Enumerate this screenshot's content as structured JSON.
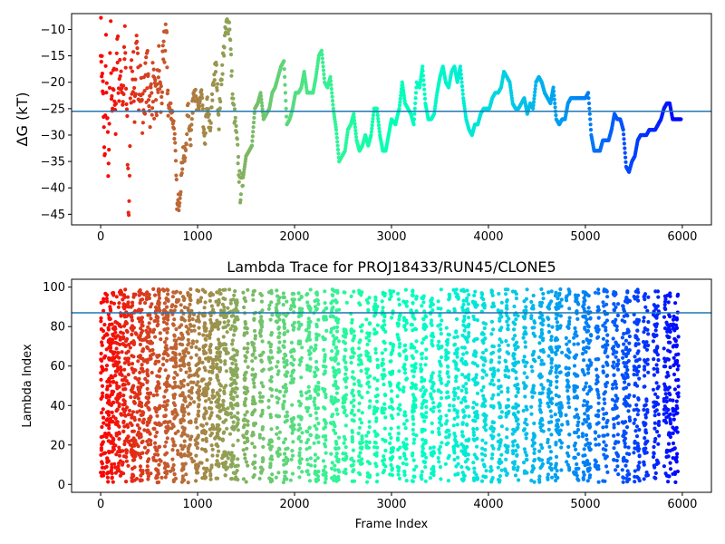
{
  "chart_data": [
    {
      "type": "scatter",
      "title": "",
      "xlabel": "",
      "ylabel": "ΔG (kT)",
      "xlim": [
        -300,
        6300
      ],
      "ylim": [
        -47,
        -7
      ],
      "xticks": [
        0,
        1000,
        2000,
        3000,
        4000,
        5000,
        6000
      ],
      "yticks": [
        -45,
        -40,
        -35,
        -30,
        -25,
        -20,
        -15,
        -10
      ],
      "colormap": "rainbow (red at frame 0 to violet at frame 6000)",
      "hline": -25.5,
      "hline_color": "#1f77b4",
      "grid": false,
      "trace": [
        [
          0,
          -10
        ],
        [
          10,
          -16
        ],
        [
          20,
          -20
        ],
        [
          30,
          -27
        ],
        [
          40,
          -37
        ],
        [
          55,
          -13
        ],
        [
          70,
          -31
        ],
        [
          85,
          -37
        ],
        [
          100,
          -8
        ],
        [
          115,
          -26
        ],
        [
          130,
          -17
        ],
        [
          150,
          -29
        ],
        [
          170,
          -11
        ],
        [
          190,
          -22
        ],
        [
          210,
          -17
        ],
        [
          230,
          -24
        ],
        [
          250,
          -13
        ],
        [
          270,
          -27
        ],
        [
          290,
          -46
        ],
        [
          310,
          -21
        ],
        [
          330,
          -16
        ],
        [
          350,
          -24
        ],
        [
          370,
          -15
        ],
        [
          390,
          -21
        ],
        [
          410,
          -18
        ],
        [
          430,
          -27
        ],
        [
          450,
          -22
        ],
        [
          480,
          -18
        ],
        [
          510,
          -24
        ],
        [
          540,
          -20
        ],
        [
          570,
          -26
        ],
        [
          600,
          -17
        ],
        [
          620,
          -24
        ],
        [
          650,
          -16
        ],
        [
          670,
          -9
        ],
        [
          700,
          -25
        ],
        [
          730,
          -25
        ],
        [
          760,
          -29
        ],
        [
          790,
          -44
        ],
        [
          810,
          -42
        ],
        [
          830,
          -38
        ],
        [
          850,
          -33
        ],
        [
          870,
          -35
        ],
        [
          900,
          -25
        ],
        [
          930,
          -31
        ],
        [
          960,
          -20
        ],
        [
          990,
          -25
        ],
        [
          1010,
          -25
        ],
        [
          1040,
          -22
        ],
        [
          1070,
          -32
        ],
        [
          1100,
          -24
        ],
        [
          1130,
          -30
        ],
        [
          1160,
          -20
        ],
        [
          1190,
          -17
        ],
        [
          1220,
          -27
        ],
        [
          1250,
          -18
        ],
        [
          1280,
          -12
        ],
        [
          1300,
          -9
        ],
        [
          1330,
          -9
        ],
        [
          1360,
          -23
        ],
        [
          1390,
          -28
        ],
        [
          1420,
          -35
        ],
        [
          1440,
          -41
        ],
        [
          1470,
          -38
        ],
        [
          1500,
          -34
        ],
        [
          1530,
          -33
        ],
        [
          1560,
          -32
        ],
        [
          1590,
          -25
        ],
        [
          1620,
          -24
        ],
        [
          1650,
          -22
        ],
        [
          1680,
          -27
        ],
        [
          1710,
          -26
        ],
        [
          1740,
          -25
        ],
        [
          1770,
          -22
        ],
        [
          1800,
          -21
        ],
        [
          1830,
          -19
        ],
        [
          1860,
          -17
        ],
        [
          1890,
          -16
        ],
        [
          1920,
          -28
        ],
        [
          1950,
          -27
        ],
        [
          1980,
          -25
        ],
        [
          2010,
          -22
        ],
        [
          2040,
          -22
        ],
        [
          2070,
          -21
        ],
        [
          2100,
          -18
        ],
        [
          2130,
          -22
        ],
        [
          2160,
          -22
        ],
        [
          2190,
          -22
        ],
        [
          2220,
          -19
        ],
        [
          2250,
          -15
        ],
        [
          2280,
          -14
        ],
        [
          2310,
          -20
        ],
        [
          2340,
          -21
        ],
        [
          2370,
          -19
        ],
        [
          2400,
          -25
        ],
        [
          2430,
          -29
        ],
        [
          2460,
          -35
        ],
        [
          2490,
          -34
        ],
        [
          2520,
          -33
        ],
        [
          2550,
          -29
        ],
        [
          2580,
          -28
        ],
        [
          2610,
          -26
        ],
        [
          2640,
          -31
        ],
        [
          2670,
          -33
        ],
        [
          2700,
          -32
        ],
        [
          2730,
          -30
        ],
        [
          2760,
          -32
        ],
        [
          2790,
          -30
        ],
        [
          2820,
          -25
        ],
        [
          2850,
          -25
        ],
        [
          2880,
          -30
        ],
        [
          2910,
          -33
        ],
        [
          2940,
          -33
        ],
        [
          2970,
          -30
        ],
        [
          3000,
          -27
        ],
        [
          3040,
          -28
        ],
        [
          3080,
          -25
        ],
        [
          3110,
          -20
        ],
        [
          3140,
          -24
        ],
        [
          3170,
          -25
        ],
        [
          3200,
          -26
        ],
        [
          3230,
          -28
        ],
        [
          3260,
          -20
        ],
        [
          3290,
          -21
        ],
        [
          3320,
          -17
        ],
        [
          3350,
          -24
        ],
        [
          3380,
          -27
        ],
        [
          3410,
          -27
        ],
        [
          3440,
          -26
        ],
        [
          3470,
          -22
        ],
        [
          3500,
          -19
        ],
        [
          3530,
          -17
        ],
        [
          3560,
          -20
        ],
        [
          3590,
          -21
        ],
        [
          3620,
          -18
        ],
        [
          3650,
          -17
        ],
        [
          3680,
          -20
        ],
        [
          3710,
          -17
        ],
        [
          3740,
          -23
        ],
        [
          3770,
          -27
        ],
        [
          3800,
          -29
        ],
        [
          3830,
          -30
        ],
        [
          3860,
          -28
        ],
        [
          3890,
          -28
        ],
        [
          3920,
          -26
        ],
        [
          3950,
          -25
        ],
        [
          3980,
          -25
        ],
        [
          4010,
          -25
        ],
        [
          4040,
          -23
        ],
        [
          4070,
          -22
        ],
        [
          4100,
          -22
        ],
        [
          4130,
          -21
        ],
        [
          4160,
          -18
        ],
        [
          4190,
          -19
        ],
        [
          4220,
          -20
        ],
        [
          4250,
          -24
        ],
        [
          4280,
          -25
        ],
        [
          4310,
          -25
        ],
        [
          4340,
          -24
        ],
        [
          4370,
          -23
        ],
        [
          4400,
          -26
        ],
        [
          4430,
          -24
        ],
        [
          4460,
          -25
        ],
        [
          4490,
          -20
        ],
        [
          4520,
          -19
        ],
        [
          4550,
          -20
        ],
        [
          4580,
          -22
        ],
        [
          4610,
          -23
        ],
        [
          4640,
          -24
        ],
        [
          4670,
          -21
        ],
        [
          4700,
          -27
        ],
        [
          4730,
          -28
        ],
        [
          4760,
          -27
        ],
        [
          4790,
          -27
        ],
        [
          4820,
          -24
        ],
        [
          4850,
          -23
        ],
        [
          4880,
          -23
        ],
        [
          4910,
          -23
        ],
        [
          4940,
          -23
        ],
        [
          4970,
          -23
        ],
        [
          5000,
          -23
        ],
        [
          5030,
          -22
        ],
        [
          5060,
          -30
        ],
        [
          5090,
          -33
        ],
        [
          5120,
          -33
        ],
        [
          5150,
          -33
        ],
        [
          5180,
          -31
        ],
        [
          5210,
          -31
        ],
        [
          5240,
          -31
        ],
        [
          5270,
          -29
        ],
        [
          5300,
          -26
        ],
        [
          5330,
          -27
        ],
        [
          5360,
          -27
        ],
        [
          5390,
          -29
        ],
        [
          5420,
          -36
        ],
        [
          5450,
          -37
        ],
        [
          5480,
          -35
        ],
        [
          5510,
          -34
        ],
        [
          5540,
          -31
        ],
        [
          5570,
          -30
        ],
        [
          5600,
          -30
        ],
        [
          5630,
          -30
        ],
        [
          5660,
          -29
        ],
        [
          5690,
          -29
        ],
        [
          5720,
          -29
        ],
        [
          5750,
          -28
        ],
        [
          5780,
          -27
        ],
        [
          5810,
          -25
        ],
        [
          5840,
          -24
        ],
        [
          5870,
          -24
        ],
        [
          5900,
          -27
        ],
        [
          5930,
          -27
        ],
        [
          5960,
          -27
        ],
        [
          5990,
          -27
        ]
      ]
    },
    {
      "type": "scatter",
      "title": "Lambda Trace for PROJ18433/RUN45/CLONE5",
      "xlabel": "Frame Index",
      "ylabel": "Lambda Index",
      "xlim": [
        -300,
        6300
      ],
      "ylim": [
        -4,
        104
      ],
      "xticks": [
        0,
        1000,
        2000,
        3000,
        4000,
        5000,
        6000
      ],
      "yticks": [
        0,
        20,
        40,
        60,
        80,
        100
      ],
      "colormap": "rainbow (red at frame 0 to violet at frame 6000)",
      "hline": 87,
      "hline_color": "#1f77b4",
      "grid": false,
      "band_ranges": [
        [
          0,
          30
        ],
        [
          60,
          140
        ],
        [
          150,
          210
        ],
        [
          230,
          290
        ],
        [
          310,
          360
        ],
        [
          390,
          440
        ],
        [
          470,
          520
        ],
        [
          560,
          610
        ],
        [
          650,
          700
        ],
        [
          740,
          780
        ],
        [
          820,
          870
        ],
        [
          900,
          940
        ],
        [
          980,
          1020
        ],
        [
          1050,
          1090
        ],
        [
          1120,
          1160
        ],
        [
          1190,
          1240
        ],
        [
          1260,
          1300
        ],
        [
          1340,
          1420
        ],
        [
          1470,
          1520
        ],
        [
          1560,
          1600
        ],
        [
          1640,
          1680
        ],
        [
          1730,
          1770
        ],
        [
          1810,
          1850
        ],
        [
          1880,
          1930
        ],
        [
          1960,
          2000
        ],
        [
          2040,
          2080
        ],
        [
          2120,
          2170
        ],
        [
          2200,
          2250
        ],
        [
          2290,
          2330
        ],
        [
          2370,
          2460
        ],
        [
          2500,
          2540
        ],
        [
          2580,
          2620
        ],
        [
          2660,
          2700
        ],
        [
          2740,
          2780
        ],
        [
          2820,
          2860
        ],
        [
          2900,
          2940
        ],
        [
          2980,
          3020
        ],
        [
          3060,
          3090
        ],
        [
          3120,
          3160
        ],
        [
          3200,
          3260
        ],
        [
          3300,
          3360
        ],
        [
          3400,
          3440
        ],
        [
          3480,
          3520
        ],
        [
          3560,
          3600
        ],
        [
          3640,
          3690
        ],
        [
          3720,
          3800
        ],
        [
          3840,
          3890
        ],
        [
          3930,
          3980
        ],
        [
          4020,
          4060
        ],
        [
          4100,
          4140
        ],
        [
          4170,
          4210
        ],
        [
          4250,
          4310
        ],
        [
          4360,
          4400
        ],
        [
          4440,
          4480
        ],
        [
          4520,
          4570
        ],
        [
          4610,
          4660
        ],
        [
          4690,
          4760
        ],
        [
          4800,
          4840
        ],
        [
          4880,
          4930
        ],
        [
          4970,
          5060
        ],
        [
          5100,
          5140
        ],
        [
          5180,
          5230
        ],
        [
          5280,
          5340
        ],
        [
          5380,
          5460
        ],
        [
          5500,
          5560
        ],
        [
          5600,
          5650
        ],
        [
          5700,
          5760
        ],
        [
          5810,
          5880
        ],
        [
          5900,
          5960
        ]
      ]
    }
  ]
}
